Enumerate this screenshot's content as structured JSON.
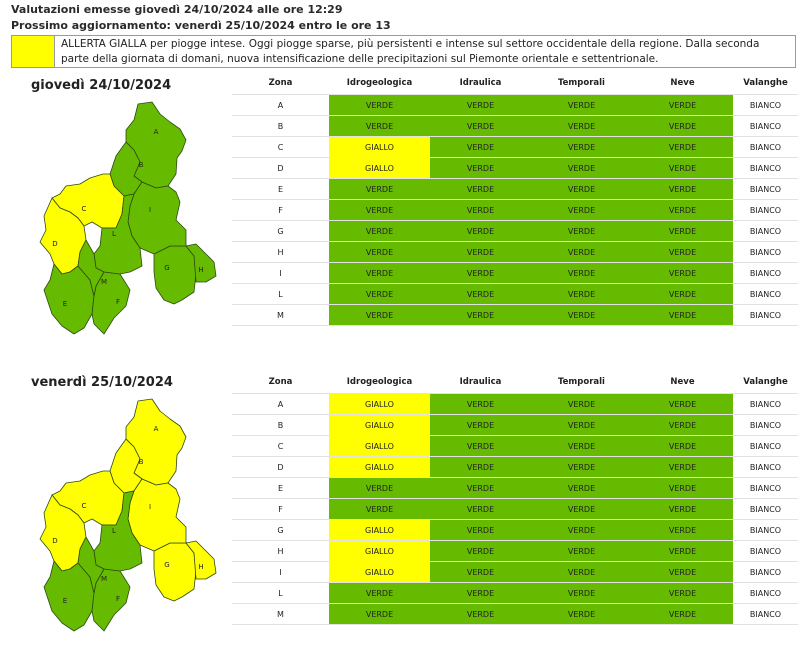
{
  "header": {
    "issued": "Valutazioni emesse giovedì 24/10/2024 alle ore 12:29",
    "next_update": "Prossimo aggiornamento: venerdì 25/10/2024 entro le ore 13"
  },
  "notice": {
    "text": "ALLERTA GIALLA per piogge intese. Oggi piogge sparse, più persistenti e intense sul settore occidentale della regione. Dalla seconda parte della giornata di domani, nuova intensificazione delle precipitazioni sul Piemonte orientale e settentrionale."
  },
  "colors": {
    "VERDE": "#66bb00",
    "GIALLO": "#ffff00",
    "BIANCO": "#ffffff"
  },
  "columns": [
    "Zona",
    "Idrogeologica",
    "Idraulica",
    "Temporali",
    "Neve",
    "Valanghe"
  ],
  "days": [
    {
      "title": "giovedì 24/10/2024",
      "rows": [
        [
          "A",
          "VERDE",
          "VERDE",
          "VERDE",
          "VERDE",
          "BIANCO"
        ],
        [
          "B",
          "VERDE",
          "VERDE",
          "VERDE",
          "VERDE",
          "BIANCO"
        ],
        [
          "C",
          "GIALLO",
          "VERDE",
          "VERDE",
          "VERDE",
          "BIANCO"
        ],
        [
          "D",
          "GIALLO",
          "VERDE",
          "VERDE",
          "VERDE",
          "BIANCO"
        ],
        [
          "E",
          "VERDE",
          "VERDE",
          "VERDE",
          "VERDE",
          "BIANCO"
        ],
        [
          "F",
          "VERDE",
          "VERDE",
          "VERDE",
          "VERDE",
          "BIANCO"
        ],
        [
          "G",
          "VERDE",
          "VERDE",
          "VERDE",
          "VERDE",
          "BIANCO"
        ],
        [
          "H",
          "VERDE",
          "VERDE",
          "VERDE",
          "VERDE",
          "BIANCO"
        ],
        [
          "I",
          "VERDE",
          "VERDE",
          "VERDE",
          "VERDE",
          "BIANCO"
        ],
        [
          "L",
          "VERDE",
          "VERDE",
          "VERDE",
          "VERDE",
          "BIANCO"
        ],
        [
          "M",
          "VERDE",
          "VERDE",
          "VERDE",
          "VERDE",
          "BIANCO"
        ]
      ]
    },
    {
      "title": "venerdì 25/10/2024",
      "rows": [
        [
          "A",
          "GIALLO",
          "VERDE",
          "VERDE",
          "VERDE",
          "BIANCO"
        ],
        [
          "B",
          "GIALLO",
          "VERDE",
          "VERDE",
          "VERDE",
          "BIANCO"
        ],
        [
          "C",
          "GIALLO",
          "VERDE",
          "VERDE",
          "VERDE",
          "BIANCO"
        ],
        [
          "D",
          "GIALLO",
          "VERDE",
          "VERDE",
          "VERDE",
          "BIANCO"
        ],
        [
          "E",
          "VERDE",
          "VERDE",
          "VERDE",
          "VERDE",
          "BIANCO"
        ],
        [
          "F",
          "VERDE",
          "VERDE",
          "VERDE",
          "VERDE",
          "BIANCO"
        ],
        [
          "G",
          "GIALLO",
          "VERDE",
          "VERDE",
          "VERDE",
          "BIANCO"
        ],
        [
          "H",
          "GIALLO",
          "VERDE",
          "VERDE",
          "VERDE",
          "BIANCO"
        ],
        [
          "I",
          "GIALLO",
          "VERDE",
          "VERDE",
          "VERDE",
          "BIANCO"
        ],
        [
          "L",
          "VERDE",
          "VERDE",
          "VERDE",
          "VERDE",
          "BIANCO"
        ],
        [
          "M",
          "VERDE",
          "VERDE",
          "VERDE",
          "VERDE",
          "BIANCO"
        ]
      ]
    }
  ]
}
